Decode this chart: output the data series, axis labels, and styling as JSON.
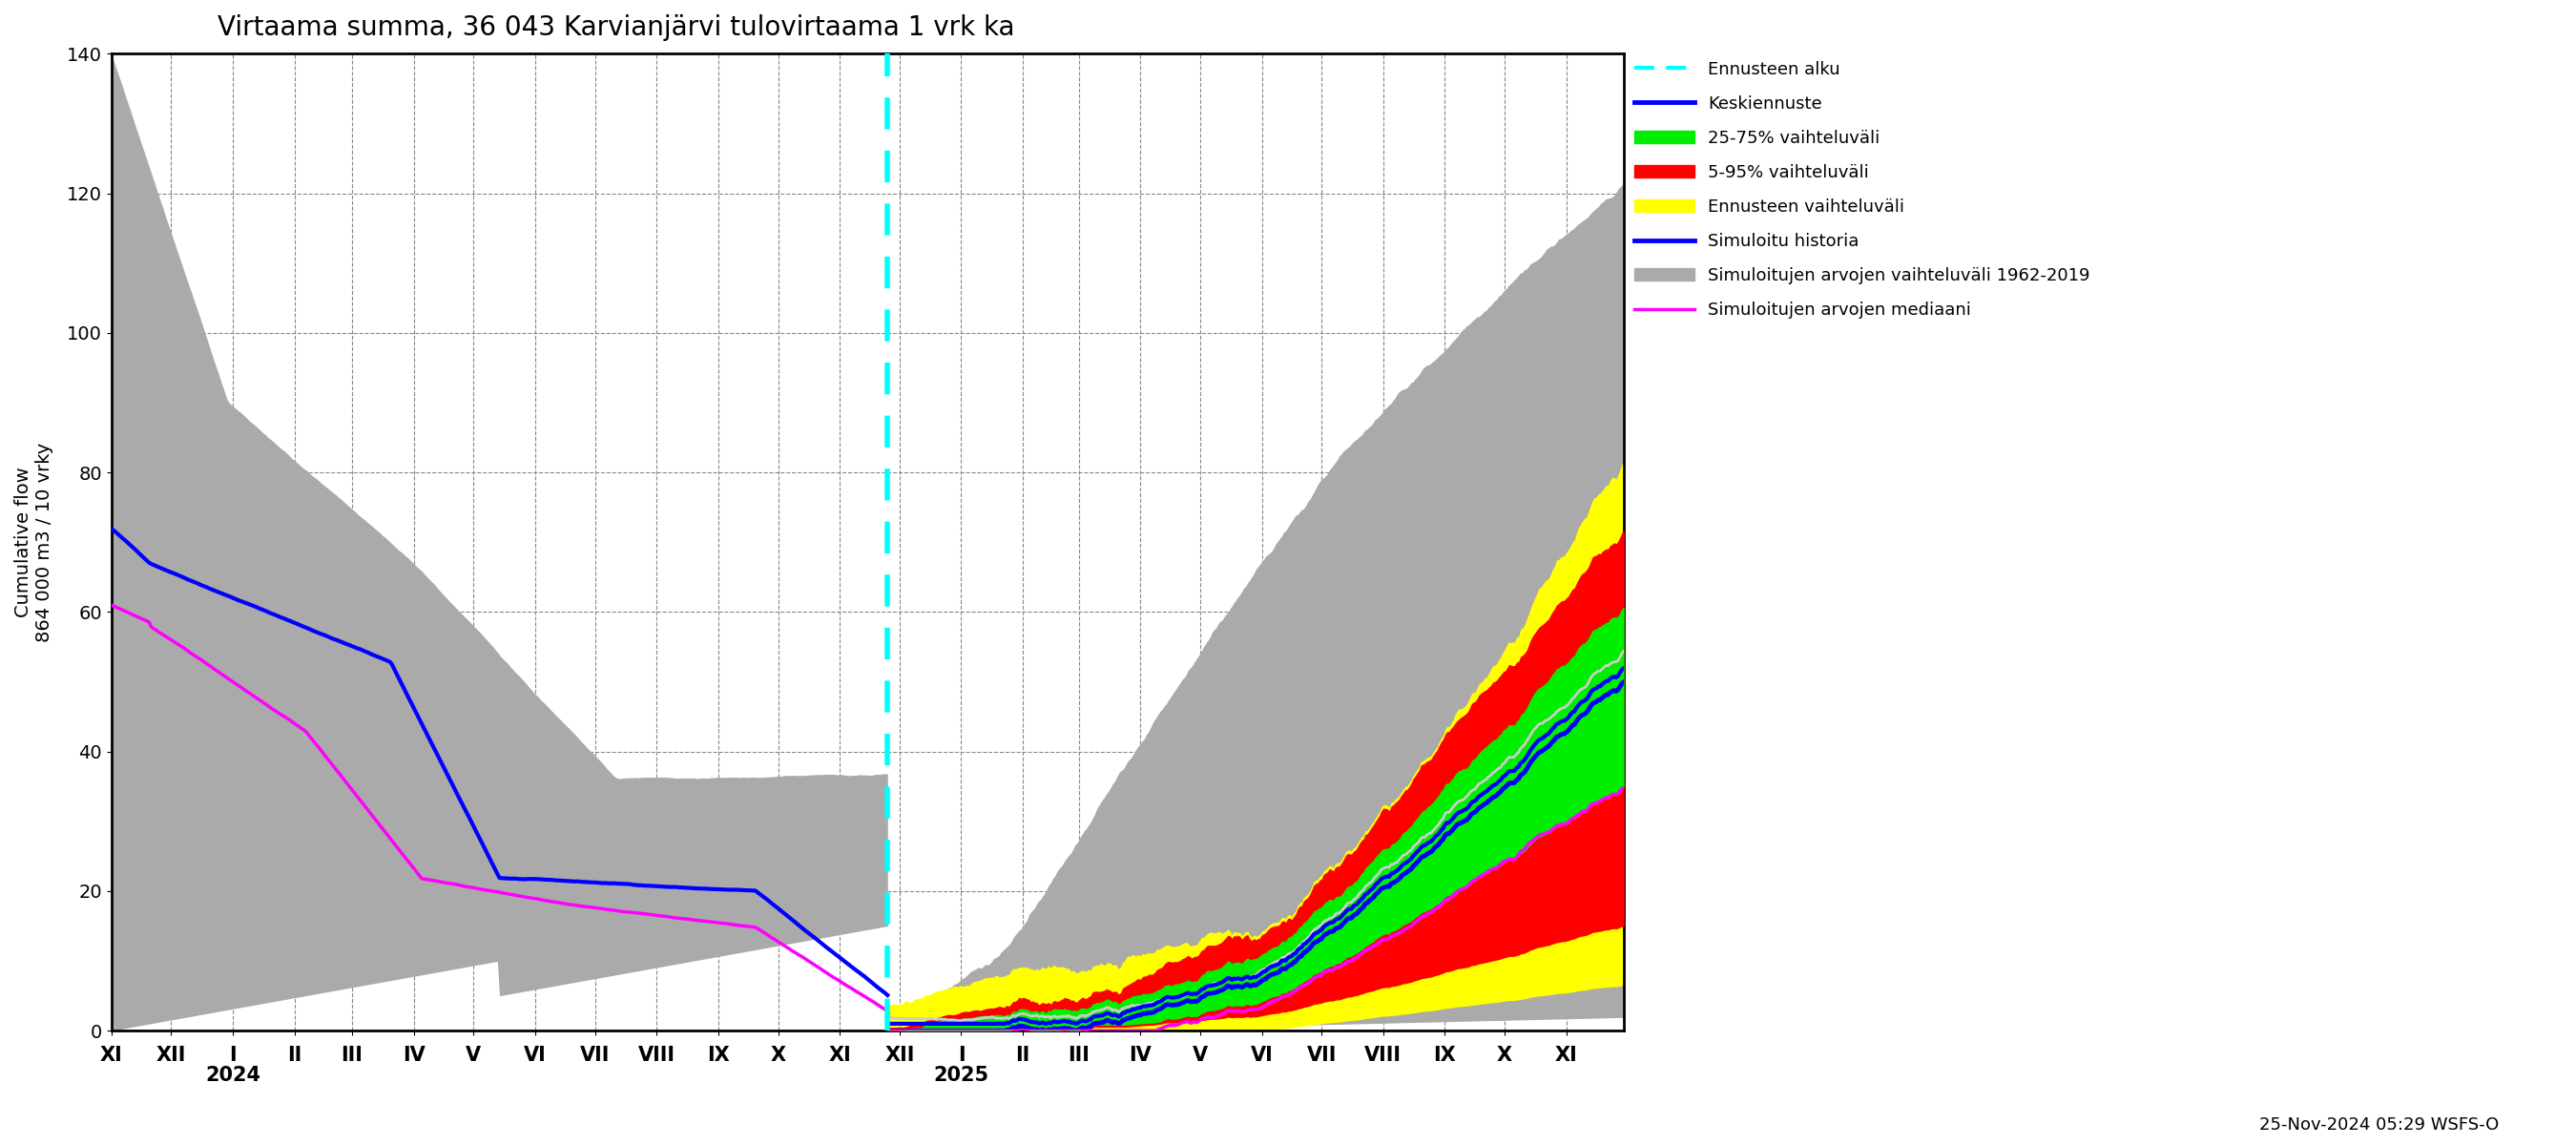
{
  "title": "Virtaama summa, 36 043 Karvianjärvi tulovirtaama 1 vrk ka",
  "ylabel": "Cumulative flow\n864 000 m3 / 10 vrky",
  "ylim": [
    0,
    140
  ],
  "yticks": [
    0,
    20,
    40,
    60,
    80,
    100,
    120,
    140
  ],
  "timestamp_label": "25-Nov-2024 05:29 WSFS-O",
  "background_color": "#ffffff",
  "legend_entries": [
    "Ennusteen alku",
    "Keskiennuste",
    "25-75% vaihteluväli",
    "5-95% vaihteluväli",
    "Ennusteen vaihteluväli",
    "Simuloitu historia",
    "Simuloitujen arvojen vaihteluväli 1962-2019",
    "Simuloitujen arvojen mediaani"
  ],
  "hist_sim_color": "#aaaaaa",
  "band_5_95_color": "#ff0000",
  "band_25_75_color": "#00ee00",
  "band_forecast_color": "#ffff00",
  "sim_history_color": "#0000ff",
  "sim_median_color": "#ff00ff",
  "forecast_mean_color": "#0000ff",
  "gray_sim_line_color": "#cccccc",
  "sim_history_lw": 3.0,
  "forecast_mean_lw": 3.5,
  "sim_median_lw": 2.5,
  "gray_line_lw": 2.0
}
